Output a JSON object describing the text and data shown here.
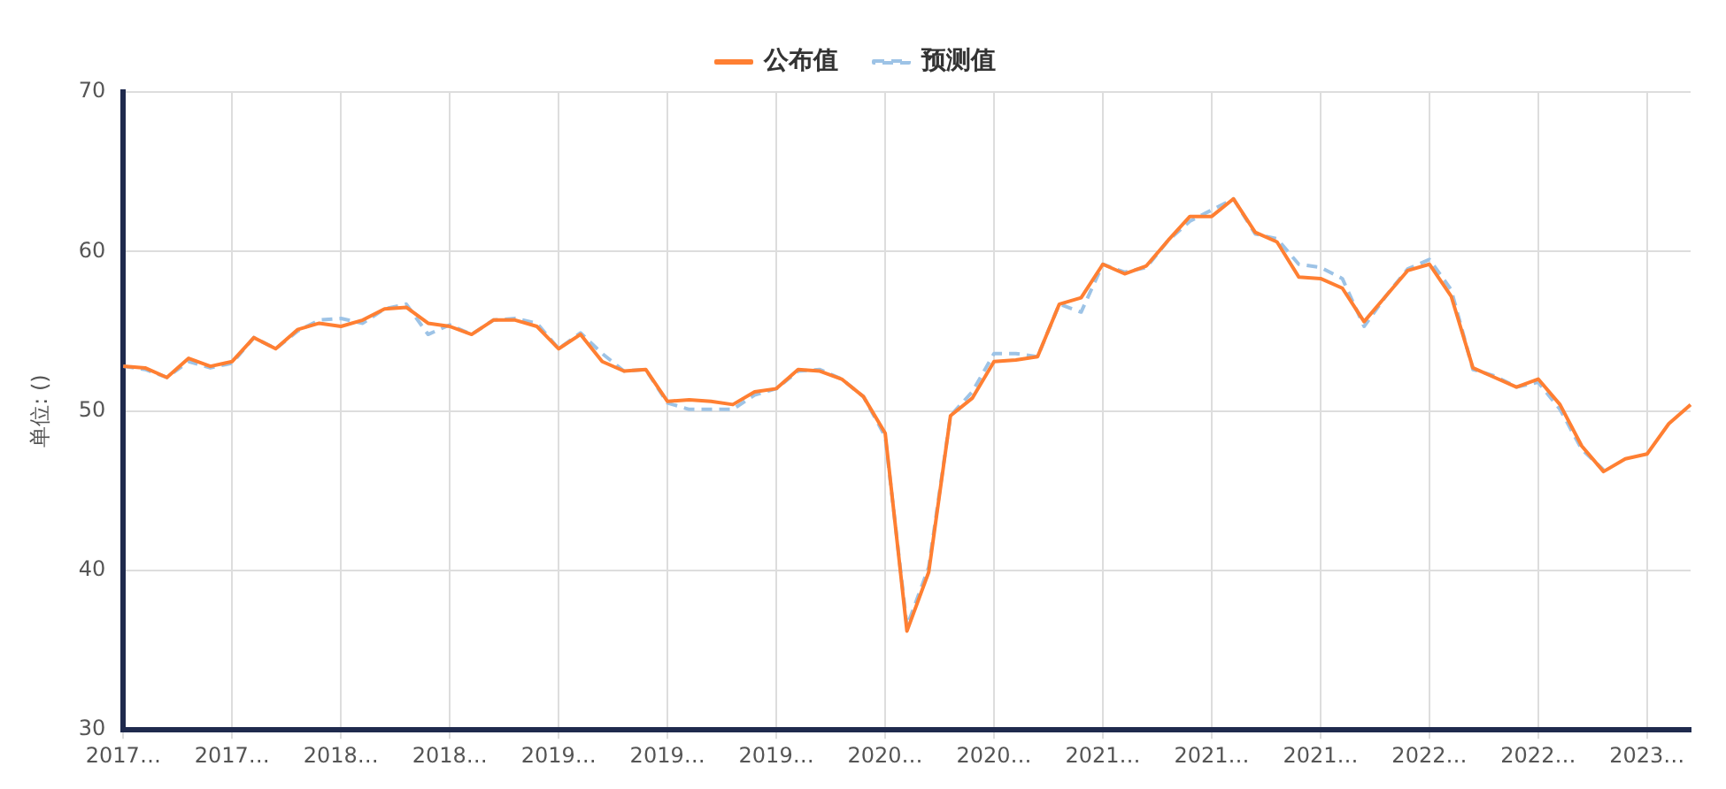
{
  "chart_data": {
    "type": "line",
    "ylabel": "单位: ()",
    "categories": [
      "2017…",
      null,
      null,
      null,
      null,
      "2017…",
      null,
      null,
      null,
      null,
      "2018…",
      null,
      null,
      null,
      null,
      "2018…",
      null,
      null,
      null,
      null,
      "2019…",
      null,
      null,
      null,
      null,
      "2019…",
      null,
      null,
      null,
      null,
      "2019…",
      null,
      null,
      null,
      null,
      "2020…",
      null,
      null,
      null,
      null,
      "2020…",
      null,
      null,
      null,
      null,
      "2021…",
      null,
      null,
      null,
      null,
      "2021…",
      null,
      null,
      null,
      null,
      "2021…",
      null,
      null,
      null,
      null,
      "2022…",
      null,
      null,
      null,
      null,
      "2022…",
      null,
      null,
      null,
      null,
      "2023…",
      null,
      null
    ],
    "series": [
      {
        "name": "公布值",
        "color": "#ff7f32",
        "line_style": "solid",
        "values": [
          52.8,
          52.7,
          52.1,
          53.3,
          52.8,
          53.1,
          54.6,
          53.9,
          55.1,
          55.5,
          55.3,
          55.7,
          56.4,
          56.5,
          55.5,
          55.3,
          54.8,
          55.7,
          55.7,
          55.3,
          53.9,
          54.8,
          53.1,
          52.5,
          52.6,
          50.6,
          50.7,
          50.6,
          50.4,
          51.2,
          51.4,
          52.6,
          52.5,
          52.0,
          50.9,
          48.6,
          36.2,
          39.9,
          49.7,
          50.8,
          53.1,
          53.2,
          53.4,
          56.7,
          57.1,
          59.2,
          58.6,
          59.1,
          60.7,
          62.2,
          62.2,
          63.3,
          61.2,
          60.6,
          58.4,
          58.3,
          57.7,
          55.6,
          57.2,
          58.8,
          59.2,
          57.2,
          52.7,
          52.1,
          51.5,
          52.0,
          50.4,
          47.8,
          46.2,
          47.0,
          47.3,
          49.2,
          50.4
        ]
      },
      {
        "name": "预测值",
        "color": "#9dc3e6",
        "line_style": "dashed",
        "values": [
          52.8,
          52.6,
          52.1,
          53.1,
          52.7,
          53.0,
          54.6,
          53.9,
          55.0,
          55.7,
          55.8,
          55.5,
          56.4,
          56.7,
          54.8,
          55.4,
          54.8,
          55.7,
          55.8,
          55.5,
          53.9,
          54.9,
          53.6,
          52.5,
          52.6,
          50.5,
          50.1,
          50.1,
          50.1,
          51.0,
          51.4,
          52.5,
          52.6,
          52.0,
          50.9,
          48.4,
          36.5,
          40.2,
          49.7,
          51.2,
          53.6,
          53.6,
          53.4,
          56.7,
          56.2,
          59.2,
          58.7,
          59.0,
          60.7,
          61.9,
          62.6,
          63.3,
          61.1,
          60.8,
          59.2,
          59.0,
          58.3,
          55.3,
          57.2,
          58.9,
          59.5,
          57.6,
          52.6,
          52.2,
          51.5,
          51.8,
          50.1,
          47.6,
          46.3,
          null,
          null,
          null,
          null
        ]
      }
    ],
    "ylim": [
      30,
      70
    ],
    "yticks": [
      30,
      40,
      50,
      60,
      70
    ],
    "grid": true,
    "legend": "top",
    "marker": "none"
  }
}
